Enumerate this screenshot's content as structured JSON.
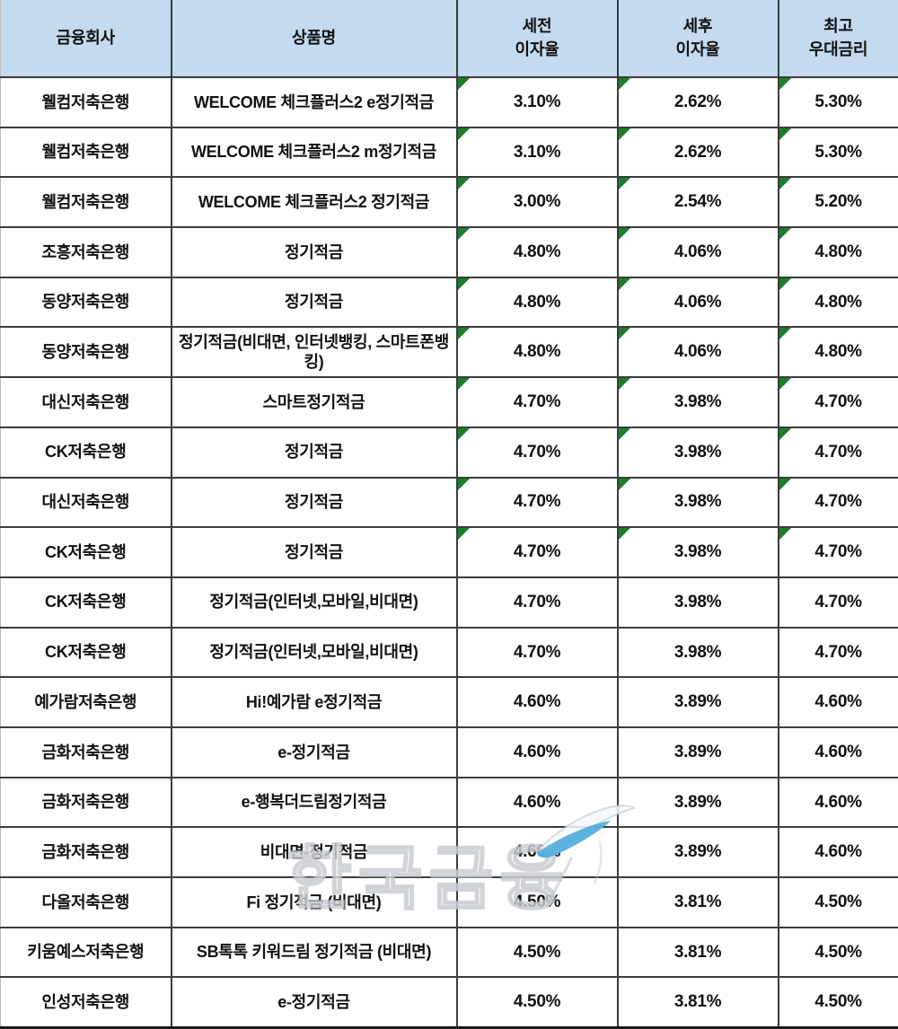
{
  "colors": {
    "header_bg": "#c3daef",
    "marker_green": "#1b7e2d",
    "grid_border": "#3c3c3c",
    "watermark_blue": "#55aedc",
    "text": "#111111"
  },
  "watermark": {
    "text": "한국금융",
    "feather_icon": "feather-icon"
  },
  "chart_data": {
    "type": "table",
    "title": "",
    "columns": [
      {
        "id": "company",
        "label": "금융회사"
      },
      {
        "id": "product",
        "label": "상품명"
      },
      {
        "id": "pre_tax",
        "label": "세전\n이자율"
      },
      {
        "id": "post_tax",
        "label": "세후\n이자율"
      },
      {
        "id": "max_rate",
        "label": "최고\n우대금리"
      }
    ],
    "rows": [
      {
        "company": "웰컴저축은행",
        "product": "WELCOME 체크플러스2 e정기적금",
        "pre_tax": "3.10%",
        "post_tax": "2.62%",
        "max_rate": "5.30%",
        "marked": true
      },
      {
        "company": "웰컴저축은행",
        "product": "WELCOME 체크플러스2 m정기적금",
        "pre_tax": "3.10%",
        "post_tax": "2.62%",
        "max_rate": "5.30%",
        "marked": true
      },
      {
        "company": "웰컴저축은행",
        "product": "WELCOME 체크플러스2 정기적금",
        "pre_tax": "3.00%",
        "post_tax": "2.54%",
        "max_rate": "5.20%",
        "marked": true
      },
      {
        "company": "조흥저축은행",
        "product": "정기적금",
        "pre_tax": "4.80%",
        "post_tax": "4.06%",
        "max_rate": "4.80%",
        "marked": true
      },
      {
        "company": "동양저축은행",
        "product": "정기적금",
        "pre_tax": "4.80%",
        "post_tax": "4.06%",
        "max_rate": "4.80%",
        "marked": true
      },
      {
        "company": "동양저축은행",
        "product": "정기적금(비대면, 인터넷뱅킹, 스마트폰뱅킹)",
        "pre_tax": "4.80%",
        "post_tax": "4.06%",
        "max_rate": "4.80%",
        "marked": true
      },
      {
        "company": "대신저축은행",
        "product": "스마트정기적금",
        "pre_tax": "4.70%",
        "post_tax": "3.98%",
        "max_rate": "4.70%",
        "marked": true
      },
      {
        "company": "CK저축은행",
        "product": "정기적금",
        "pre_tax": "4.70%",
        "post_tax": "3.98%",
        "max_rate": "4.70%",
        "marked": true
      },
      {
        "company": "대신저축은행",
        "product": "정기적금",
        "pre_tax": "4.70%",
        "post_tax": "3.98%",
        "max_rate": "4.70%",
        "marked": true
      },
      {
        "company": "CK저축은행",
        "product": "정기적금",
        "pre_tax": "4.70%",
        "post_tax": "3.98%",
        "max_rate": "4.70%",
        "marked": true
      },
      {
        "company": "CK저축은행",
        "product": "정기적금(인터넷,모바일,비대면)",
        "pre_tax": "4.70%",
        "post_tax": "3.98%",
        "max_rate": "4.70%",
        "marked": false
      },
      {
        "company": "CK저축은행",
        "product": "정기적금(인터넷,모바일,비대면)",
        "pre_tax": "4.70%",
        "post_tax": "3.98%",
        "max_rate": "4.70%",
        "marked": false
      },
      {
        "company": "예가람저축은행",
        "product": "Hi!예가람 e정기적금",
        "pre_tax": "4.60%",
        "post_tax": "3.89%",
        "max_rate": "4.60%",
        "marked": false
      },
      {
        "company": "금화저축은행",
        "product": "e-정기적금",
        "pre_tax": "4.60%",
        "post_tax": "3.89%",
        "max_rate": "4.60%",
        "marked": false
      },
      {
        "company": "금화저축은행",
        "product": "e-행복더드림정기적금",
        "pre_tax": "4.60%",
        "post_tax": "3.89%",
        "max_rate": "4.60%",
        "marked": false
      },
      {
        "company": "금화저축은행",
        "product": "비대면-정기적금",
        "pre_tax": "4.60%",
        "post_tax": "3.89%",
        "max_rate": "4.60%",
        "marked": false
      },
      {
        "company": "다올저축은행",
        "product": "Fi 정기적금 (비대면)",
        "pre_tax": "4.50%",
        "post_tax": "3.81%",
        "max_rate": "4.50%",
        "marked": false
      },
      {
        "company": "키움예스저축은행",
        "product": "SB톡톡 키워드림 정기적금 (비대면)",
        "pre_tax": "4.50%",
        "post_tax": "3.81%",
        "max_rate": "4.50%",
        "marked": false
      },
      {
        "company": "인성저축은행",
        "product": "e-정기적금",
        "pre_tax": "4.50%",
        "post_tax": "3.81%",
        "max_rate": "4.50%",
        "marked": false
      }
    ]
  }
}
